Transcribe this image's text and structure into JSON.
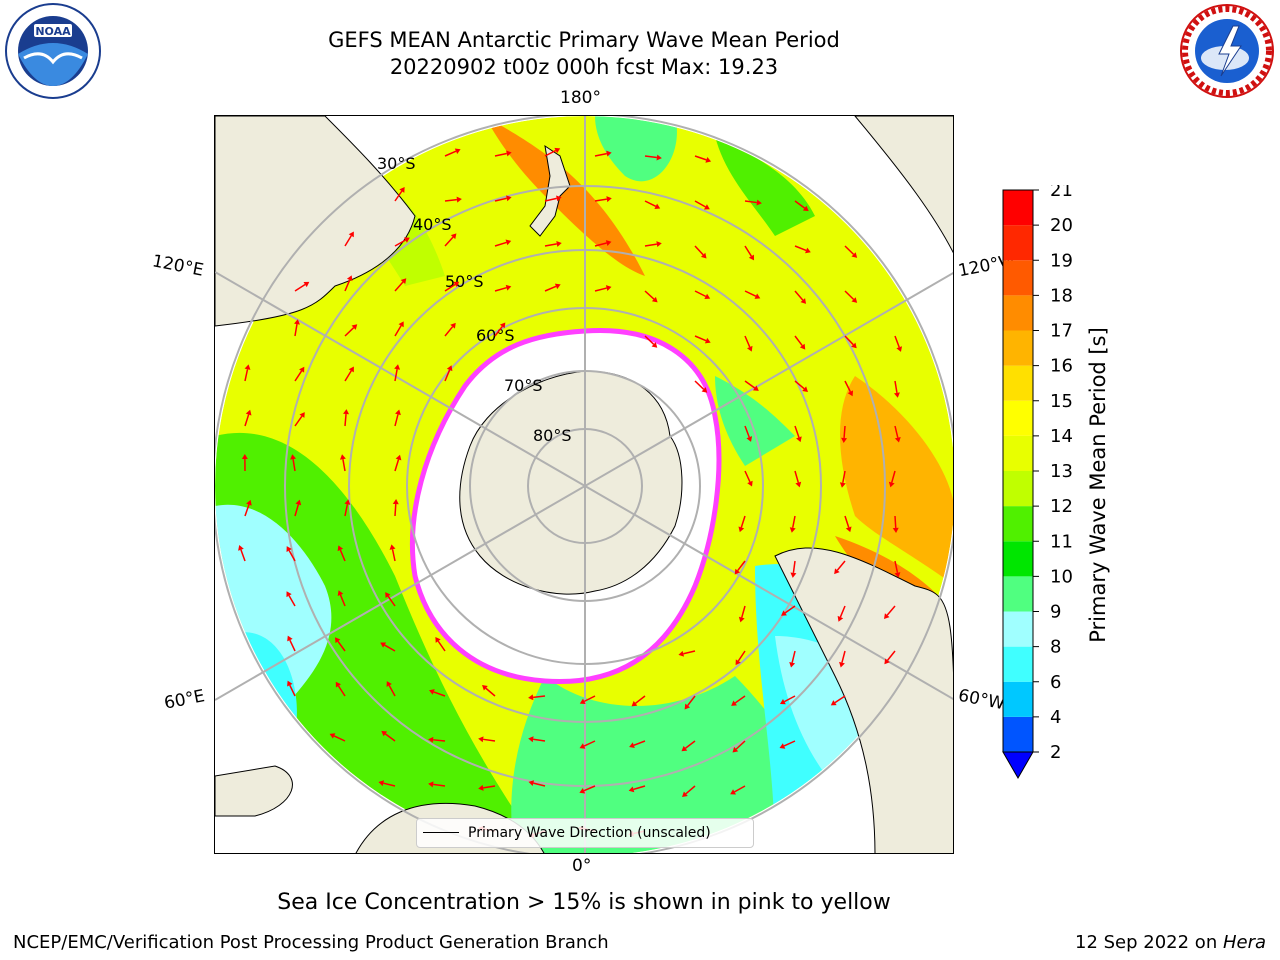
{
  "header": {
    "title_line1": "GEFS MEAN Antarctic Primary Wave Mean Period",
    "title_line2": "20220902 t00z 000h fcst   Max: 19.23"
  },
  "map": {
    "projection": "south-polar-stereographic",
    "lon_labels": {
      "top": "180°",
      "bottom": "0°",
      "left_upper": "120°E",
      "right_upper": "120°W",
      "left_lower": "60°E",
      "right_lower": "60°W"
    },
    "lat_labels": [
      "30°S",
      "40°S",
      "50°S",
      "60°S",
      "70°S",
      "80°S"
    ],
    "legend_label": "Primary Wave Direction (unscaled)",
    "arrow_color": "#ff0000",
    "land_color": "#eeecdc",
    "sea_ice_color": "#ff40ff"
  },
  "colorbar": {
    "label": "Primary Wave Mean Period [s]",
    "ticks": [
      "2",
      "4",
      "6",
      "8",
      "9",
      "10",
      "11",
      "12",
      "13",
      "14",
      "15",
      "16",
      "17",
      "18",
      "19",
      "20",
      "21"
    ],
    "colors": [
      "#0055ff",
      "#00c8ff",
      "#40ffff",
      "#a0ffff",
      "#50ff80",
      "#00e600",
      "#50f000",
      "#c0ff00",
      "#e8ff00",
      "#ffff00",
      "#ffe000",
      "#ffb400",
      "#ff8c00",
      "#ff5a00",
      "#ff2800",
      "#ff0000"
    ],
    "extend_color": "#0000ff"
  },
  "caption": "Sea Ice Concentration > 15% is shown in pink to yellow",
  "footer": {
    "left": "NCEP/EMC/Verification Post Processing Product Generation Branch",
    "date": "12 Sep 2022 on ",
    "machine": "Hera"
  }
}
